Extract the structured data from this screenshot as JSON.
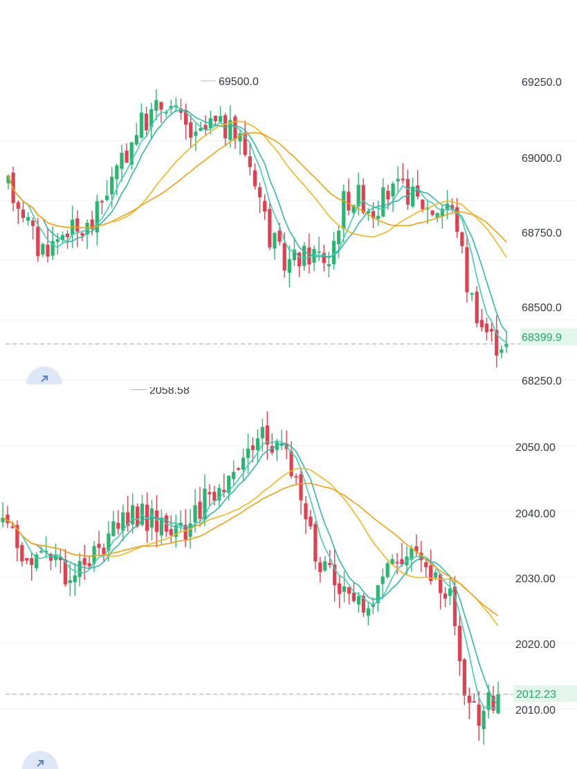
{
  "colors": {
    "up": "#2db470",
    "down": "#e0404f",
    "ma_fast": "#3fcfb4",
    "ma_mid": "#2fb8a8",
    "ma_slow": "#f2b51c",
    "ma_slower": "#f0a010",
    "grid": "#eef0f3",
    "current_line": "#9aa0a6",
    "current_bg": "#e3f6ea"
  },
  "chart_data": [
    {
      "type": "candlestick",
      "title": "",
      "ylim": [
        68250.0,
        69500.0
      ],
      "y_ticks": [
        "69250.0",
        "69000.0",
        "68750.0",
        "68500.0",
        "68250.0"
      ],
      "y_tick_values": [
        69250,
        69000,
        68750,
        68500,
        68250
      ],
      "current_price": 68399.9,
      "current_label": "68399.9",
      "high_label": "69500.0",
      "high_value": 69500.0,
      "anchors": [
        [
          0,
          69060
        ],
        [
          3,
          68960
        ],
        [
          6,
          68800
        ],
        [
          9,
          68820
        ],
        [
          12,
          68890
        ],
        [
          14,
          68860
        ],
        [
          17,
          68900
        ],
        [
          20,
          69050
        ],
        [
          23,
          69150
        ],
        [
          26,
          69300
        ],
        [
          29,
          69360
        ],
        [
          32,
          69420
        ],
        [
          35,
          69330
        ],
        [
          38,
          69250
        ],
        [
          41,
          69320
        ],
        [
          44,
          69300
        ],
        [
          47,
          69260
        ],
        [
          50,
          69100
        ],
        [
          53,
          68850
        ],
        [
          56,
          68740
        ],
        [
          59,
          68760
        ],
        [
          62,
          68780
        ],
        [
          65,
          68750
        ],
        [
          68,
          69000
        ],
        [
          71,
          69020
        ],
        [
          74,
          68960
        ],
        [
          77,
          69030
        ],
        [
          80,
          69050
        ],
        [
          83,
          69000
        ],
        [
          86,
          68960
        ],
        [
          89,
          68990
        ],
        [
          91,
          68900
        ],
        [
          93,
          68650
        ],
        [
          96,
          68480
        ],
        [
          99,
          68400
        ],
        [
          101,
          68420
        ]
      ]
    },
    {
      "type": "candlestick",
      "title": "",
      "ylim": [
        2010.0,
        2050.0
      ],
      "y_ticks": [
        "2050.00",
        "2040.00",
        "2030.00",
        "2020.00",
        "2010.00"
      ],
      "y_tick_values": [
        2050,
        2040,
        2030,
        2020,
        2010
      ],
      "current_price": 2012.23,
      "current_label": "2012.23",
      "high_label": "2058.58",
      "high_value": 2058.58,
      "anchors": [
        [
          0,
          2038
        ],
        [
          3,
          2035
        ],
        [
          6,
          2032
        ],
        [
          9,
          2033
        ],
        [
          12,
          2031
        ],
        [
          15,
          2030
        ],
        [
          18,
          2032
        ],
        [
          21,
          2035
        ],
        [
          24,
          2038
        ],
        [
          27,
          2040
        ],
        [
          30,
          2039
        ],
        [
          33,
          2038
        ],
        [
          36,
          2037
        ],
        [
          39,
          2038
        ],
        [
          42,
          2042
        ],
        [
          45,
          2044
        ],
        [
          48,
          2045
        ],
        [
          51,
          2049
        ],
        [
          54,
          2052
        ],
        [
          57,
          2050
        ],
        [
          60,
          2047
        ],
        [
          63,
          2038
        ],
        [
          66,
          2032
        ],
        [
          69,
          2030
        ],
        [
          72,
          2028
        ],
        [
          75,
          2025
        ],
        [
          78,
          2027
        ],
        [
          81,
          2032
        ],
        [
          84,
          2034
        ],
        [
          87,
          2033
        ],
        [
          90,
          2030
        ],
        [
          93,
          2027
        ],
        [
          96,
          2012
        ],
        [
          99,
          2008
        ],
        [
          101,
          2011
        ],
        [
          103,
          2012
        ]
      ]
    }
  ]
}
